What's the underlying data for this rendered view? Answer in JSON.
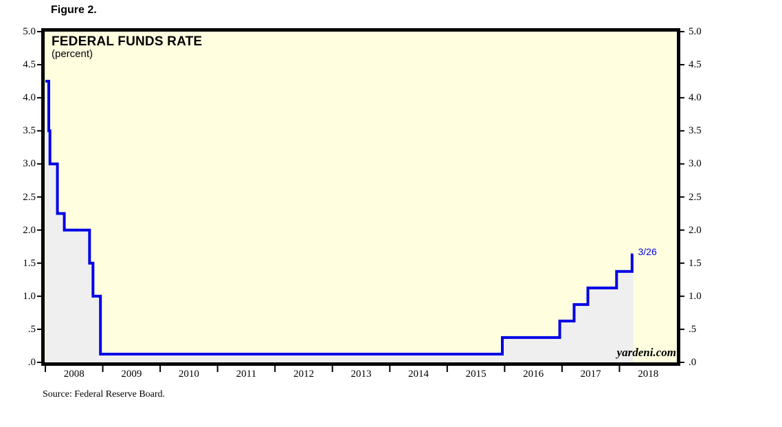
{
  "figure": {
    "label": "Figure 2.",
    "source": "Source: Federal Reserve Board."
  },
  "chart_data": {
    "type": "line",
    "step": true,
    "title": "FEDERAL FUNDS RATE",
    "subtitle": "(percent)",
    "watermark": "yardeni.com",
    "end_label": "3/26",
    "grid": false,
    "legend": "none",
    "xlim": [
      2008,
      2019
    ],
    "ylim": [
      0,
      5
    ],
    "series": [
      {
        "name": "Federal funds rate target (percent)",
        "x": [
          2008.0,
          2008.06,
          2008.08,
          2008.21,
          2008.33,
          2008.77,
          2008.83,
          2008.96,
          2015.96,
          2016.96,
          2017.21,
          2017.45,
          2017.95,
          2018.22,
          2018.24
        ],
        "y": [
          4.25,
          3.5,
          3.0,
          2.25,
          2.0,
          1.5,
          1.0,
          0.125,
          0.375,
          0.625,
          0.875,
          1.125,
          1.375,
          1.625,
          1.625
        ]
      }
    ],
    "y_ticks": [
      {
        "value": 5.0,
        "label": "5.0"
      },
      {
        "value": 4.5,
        "label": "4.5"
      },
      {
        "value": 4.0,
        "label": "4.0"
      },
      {
        "value": 3.5,
        "label": "3.5"
      },
      {
        "value": 3.0,
        "label": "3.0"
      },
      {
        "value": 2.5,
        "label": "2.5"
      },
      {
        "value": 2.0,
        "label": "2.0"
      },
      {
        "value": 1.5,
        "label": "1.5"
      },
      {
        "value": 1.0,
        "label": "1.0"
      },
      {
        "value": 0.5,
        "label": ".5"
      },
      {
        "value": 0.0,
        "label": ".0"
      }
    ],
    "x_ticks_years": [
      2008,
      2009,
      2010,
      2011,
      2012,
      2013,
      2014,
      2015,
      2016,
      2017,
      2018
    ],
    "x_year_labels": [
      "2008",
      "2009",
      "2010",
      "2011",
      "2012",
      "2013",
      "2014",
      "2015",
      "2016",
      "2017",
      "2018"
    ],
    "colors": {
      "line": "#0000E6",
      "fill": "#EFEFEF",
      "plot_bg": "#FFFFE0",
      "border": "#000000",
      "end_label": "#0000E6"
    }
  }
}
